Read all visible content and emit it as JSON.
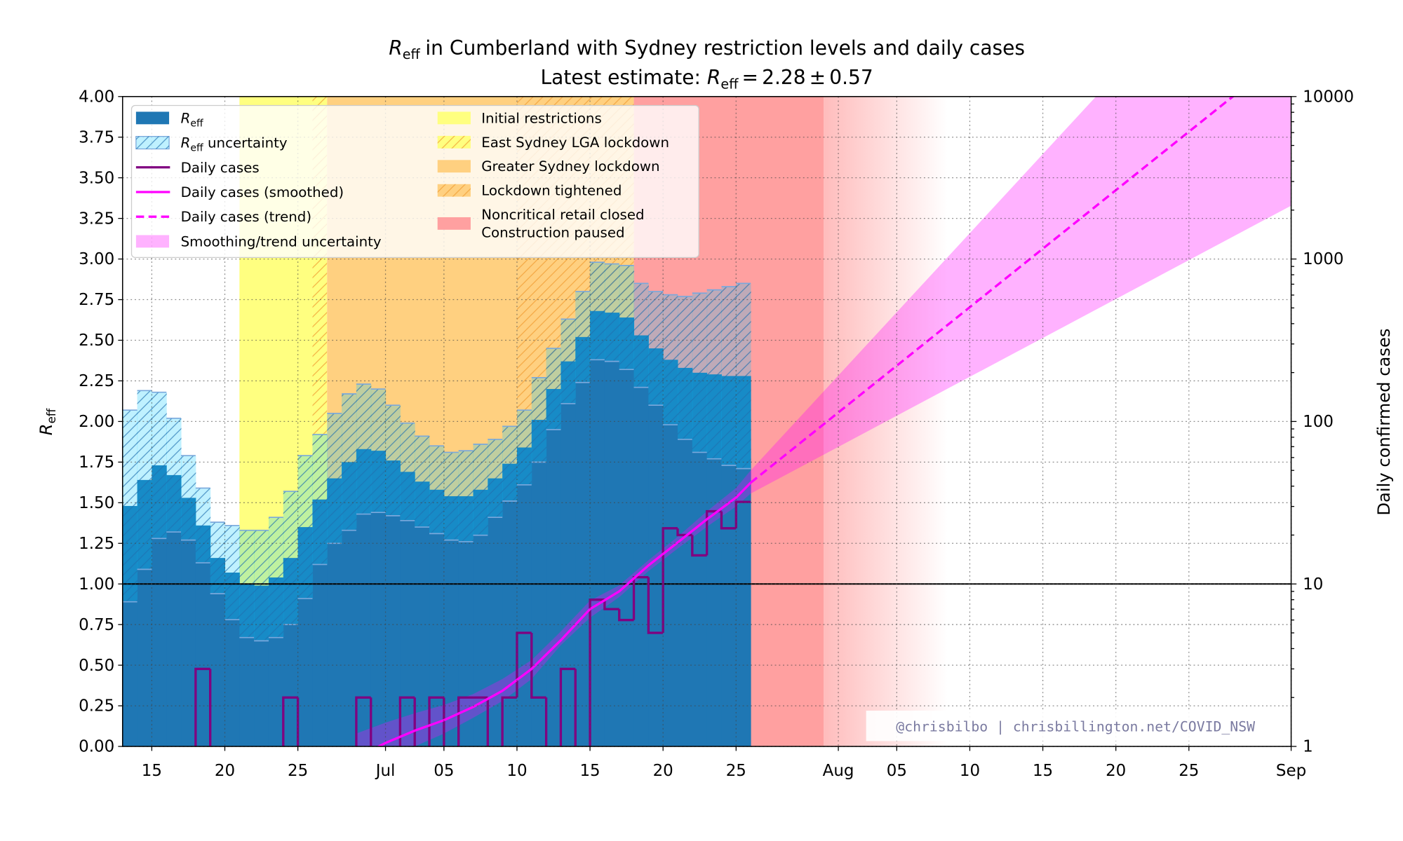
{
  "chart_data": {
    "type": "step",
    "reff_symbol": "R",
    "reff_subscript": "eff",
    "title": "in Cumberland with Sydney restriction levels and daily cases",
    "subtitle": "Latest estimate:",
    "equals": "=",
    "plus_minus": "±",
    "y2label": "Daily confirmed cases",
    "watermark": "@chrisbilbo | chrisbillington.net/COVID_NSW",
    "xlim": [
      13,
      93
    ],
    "xticks": [
      15,
      20,
      25,
      {
        "value": 31,
        "label": "Jul"
      },
      {
        "value": 35,
        "label": "05"
      },
      {
        "value": 40,
        "label": "10"
      },
      {
        "value": 45,
        "label": "15"
      },
      {
        "value": 50,
        "label": "20"
      },
      {
        "value": 55,
        "label": "25"
      },
      {
        "value": 62,
        "label": "Aug"
      },
      {
        "value": 66,
        "label": "05"
      },
      {
        "value": 71,
        "label": "10"
      },
      {
        "value": 76,
        "label": "15"
      },
      {
        "value": 81,
        "label": "20"
      },
      {
        "value": 86,
        "label": "25"
      },
      {
        "value": 93,
        "label": "Sep"
      }
    ],
    "ylim": [
      0,
      4
    ],
    "yticks": [
      {
        "value": 0,
        "label": "0.00"
      },
      {
        "value": 0.25,
        "label": "0.25"
      },
      {
        "value": 0.5,
        "label": "0.50"
      },
      {
        "value": 0.75,
        "label": "0.75"
      },
      {
        "value": 1,
        "label": "1.00"
      },
      {
        "value": 1.25,
        "label": "1.25"
      },
      {
        "value": 1.5,
        "label": "1.50"
      },
      {
        "value": 1.75,
        "label": "1.75"
      },
      {
        "value": 2,
        "label": "2.00"
      },
      {
        "value": 2.25,
        "label": "2.25"
      },
      {
        "value": 2.5,
        "label": "2.50"
      },
      {
        "value": 2.75,
        "label": "2.75"
      },
      {
        "value": 3,
        "label": "3.00"
      },
      {
        "value": 3.25,
        "label": "3.25"
      },
      {
        "value": 3.5,
        "label": "3.50"
      },
      {
        "value": 3.75,
        "label": "3.75"
      },
      {
        "value": 4,
        "label": "4.00"
      }
    ],
    "y2lim": [
      1,
      10000
    ],
    "y2log": true,
    "y2ticks": [
      1,
      10,
      100,
      1000,
      10000
    ],
    "y2minorticks": [
      2,
      3,
      4,
      5,
      6,
      7,
      8,
      9,
      20,
      30,
      40,
      50,
      60,
      70,
      80,
      90,
      200,
      300,
      400,
      500,
      600,
      700,
      800,
      900,
      2000,
      3000,
      4000,
      5000,
      6000,
      7000,
      8000,
      9000
    ],
    "grid": true,
    "threshold": 1,
    "bins": [
      13,
      14,
      15,
      16,
      17,
      18,
      19,
      20,
      21,
      22,
      23,
      24,
      25,
      26,
      27,
      28,
      29,
      30,
      31,
      32,
      33,
      34,
      35,
      36,
      37,
      38,
      39,
      40,
      41,
      42,
      43,
      44,
      45,
      46,
      47,
      48,
      49,
      50,
      51,
      52,
      53,
      54,
      55,
      56
    ],
    "reff": {
      "color": "#1f77b4",
      "uncertainty_color": "#00c8ff",
      "uncertainty_name": "uncertainty",
      "values": [
        1.48,
        1.64,
        1.73,
        1.67,
        1.53,
        1.36,
        1.16,
        1.07,
        1.0,
        0.99,
        1.04,
        1.16,
        1.35,
        1.52,
        1.65,
        1.75,
        1.83,
        1.82,
        1.76,
        1.69,
        1.63,
        1.58,
        1.54,
        1.54,
        1.58,
        1.65,
        1.74,
        1.84,
        2.01,
        2.2,
        2.37,
        2.52,
        2.68,
        2.67,
        2.64,
        2.53,
        2.45,
        2.38,
        2.33,
        2.3,
        2.29,
        2.28,
        2.28
      ],
      "errors": [
        0.59,
        0.55,
        0.45,
        0.35,
        0.26,
        0.23,
        0.22,
        0.29,
        0.33,
        0.34,
        0.37,
        0.41,
        0.44,
        0.4,
        0.4,
        0.42,
        0.4,
        0.38,
        0.34,
        0.3,
        0.28,
        0.27,
        0.27,
        0.28,
        0.28,
        0.24,
        0.23,
        0.23,
        0.26,
        0.25,
        0.26,
        0.28,
        0.3,
        0.3,
        0.32,
        0.32,
        0.35,
        0.4,
        0.44,
        0.49,
        0.52,
        0.55,
        0.57
      ]
    },
    "cases": {
      "name": "Daily cases",
      "color": "#800080",
      "axis": "y2",
      "values": [
        0,
        0,
        0,
        0,
        0,
        3,
        0,
        0,
        0,
        0,
        0,
        2,
        0,
        0,
        0,
        0,
        2,
        0,
        0,
        2,
        0,
        2,
        0,
        2,
        2,
        0,
        2,
        5,
        2,
        0,
        3,
        0,
        8,
        7,
        6,
        11,
        5,
        22,
        20,
        15,
        28,
        22,
        32
      ]
    },
    "smoothed": {
      "name": "Daily cases (smoothed)",
      "color": "#ff00ff",
      "axis": "y2",
      "x": [
        29,
        31,
        33,
        35,
        37,
        39,
        41,
        43,
        45,
        47,
        49,
        51,
        53,
        55,
        56
      ],
      "values": [
        0.85,
        1.05,
        1.25,
        1.45,
        1.75,
        2.2,
        3.0,
        4.5,
        7.0,
        9.0,
        13,
        18,
        25,
        34,
        42
      ],
      "lower": [
        0.6,
        0.8,
        1.0,
        1.2,
        1.5,
        1.9,
        2.6,
        4.2,
        6.2,
        8.3,
        12,
        16.5,
        22.5,
        30,
        36
      ],
      "upper": [
        1.2,
        1.4,
        1.6,
        1.8,
        2.1,
        2.6,
        3.4,
        5.1,
        7.9,
        9.8,
        14,
        19.5,
        28,
        39,
        50
      ]
    },
    "trend": {
      "name": "Daily cases (trend)",
      "color": "#ff00ff",
      "axis": "y2",
      "x": [
        56,
        93
      ],
      "values": [
        42,
        19400
      ],
      "lower": [
        36,
        2130
      ],
      "upper": [
        50,
        200000
      ]
    },
    "band_name": "Smoothing/trend uncertainty",
    "band_color": "#ff00ff",
    "restrictions": [
      {
        "name": "Initial restrictions",
        "color": "#ffff80",
        "start": 21,
        "end": 26,
        "hatch": false
      },
      {
        "name": "East Sydney LGA lockdown",
        "color": "#ffff80",
        "start": 26,
        "end": 27,
        "hatch": true
      },
      {
        "name": "Greater Sydney lockdown",
        "color": "#ffd080",
        "start": 27,
        "end": 40,
        "hatch": false
      },
      {
        "name": "Lockdown tightened",
        "color": "#ffd080",
        "start": 40,
        "end": 48,
        "hatch": true
      },
      {
        "name": [
          "Noncritical retail closed",
          "Construction paused"
        ],
        "color": "#ffa0a0",
        "start": 48,
        "end": 61,
        "hatch": false,
        "fade": true
      }
    ]
  }
}
